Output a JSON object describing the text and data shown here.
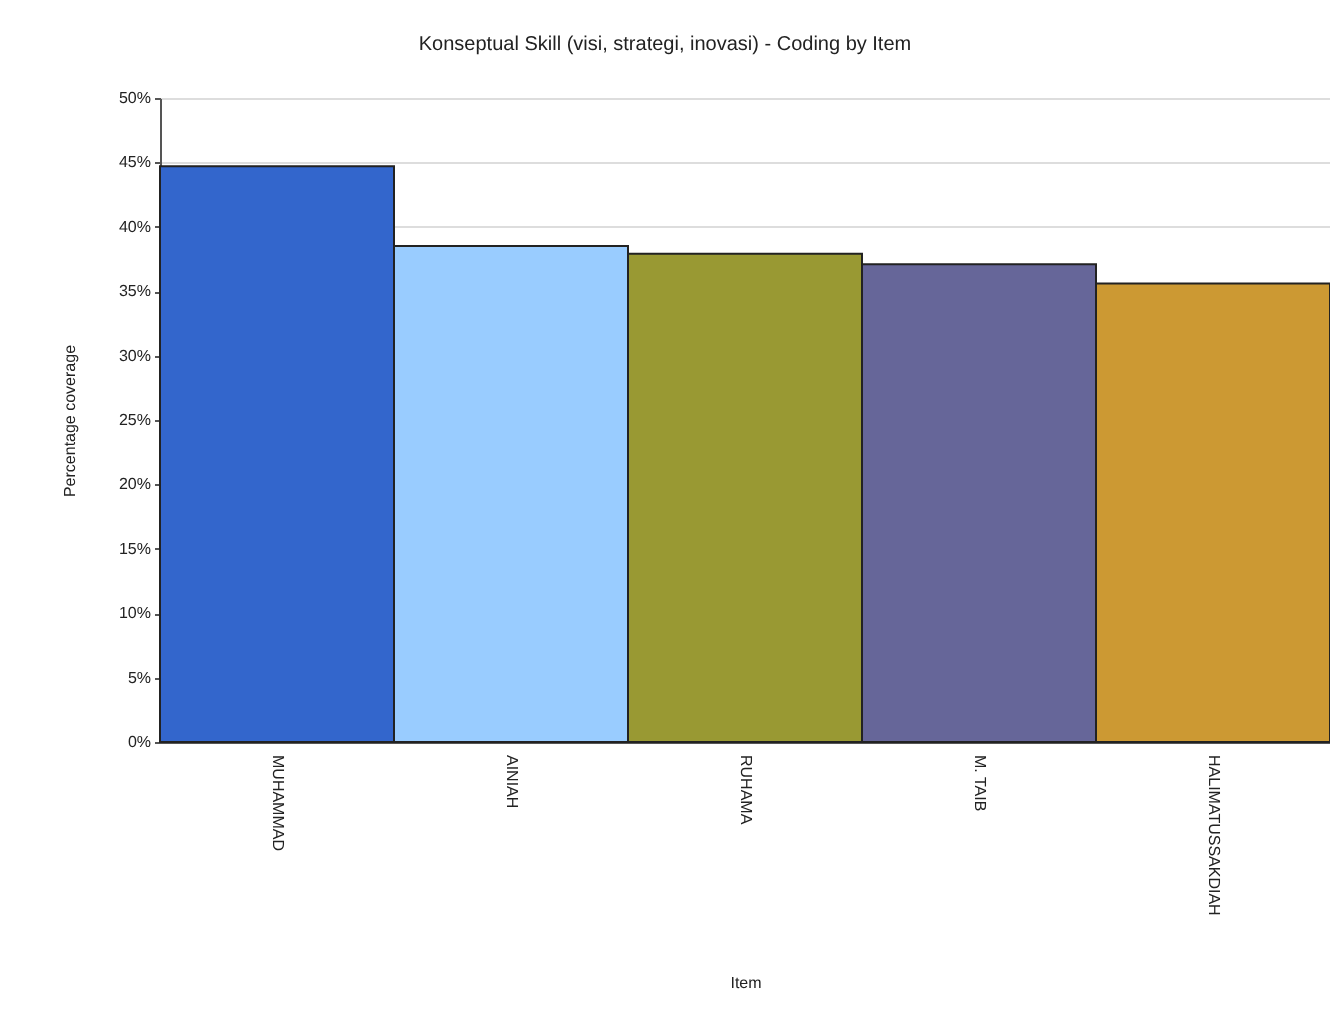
{
  "chart_data": {
    "type": "bar",
    "title": "Konseptual Skill (visi, strategi, inovasi) - Coding by Item",
    "xlabel": "Item",
    "ylabel": "Percentage coverage",
    "categories": [
      "MUHAMMAD",
      "AINIAH",
      "RUHAMA",
      "M. TAIB",
      "HALIMATUSSAKDIAH"
    ],
    "values": [
      44.7,
      38.5,
      37.9,
      37.1,
      35.6
    ],
    "colors": [
      "#3366cc",
      "#99ccff",
      "#999933",
      "#666699",
      "#cc9933"
    ],
    "ylim": [
      0,
      50
    ],
    "yticks": [
      {
        "value": 0,
        "label": "0%"
      },
      {
        "value": 5,
        "label": "5%"
      },
      {
        "value": 10,
        "label": "10%"
      },
      {
        "value": 15,
        "label": "15%"
      },
      {
        "value": 20,
        "label": "20%"
      },
      {
        "value": 25,
        "label": "25%"
      },
      {
        "value": 30,
        "label": "30%"
      },
      {
        "value": 35,
        "label": "35%"
      },
      {
        "value": 40,
        "label": "40%"
      },
      {
        "value": 45,
        "label": "45%"
      },
      {
        "value": 50,
        "label": "50%"
      }
    ],
    "grid": "y"
  }
}
